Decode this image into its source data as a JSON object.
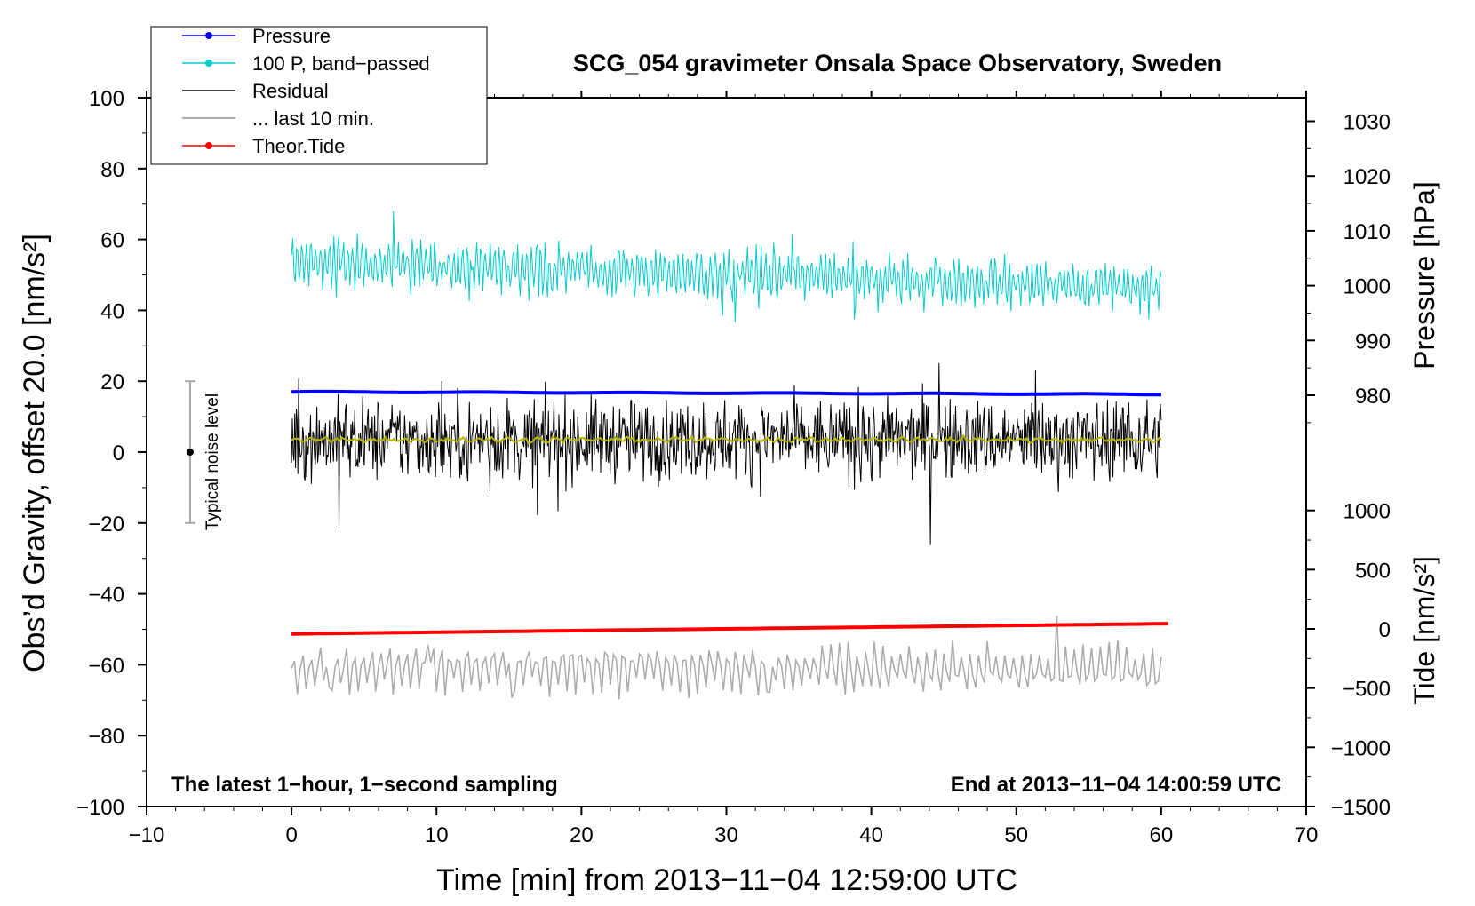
{
  "chart_data": {
    "type": "line",
    "title": "SCG_054 gravimeter Onsala Space Observatory, Sweden",
    "xlabel": "Time [min] from 2013−11−04 12:59:00 UTC",
    "ylabel_left": "Obs’d Gravity, offset 20.0 [nm/s²]",
    "ylabel_right_top": "Pressure [hPa]",
    "ylabel_right_bottom": "Tide [nm/s²]",
    "xlim": [
      -10,
      70
    ],
    "ylim": [
      -100,
      100
    ],
    "pressure_axis_ticks": [
      980,
      990,
      1000,
      1010,
      1020,
      1030
    ],
    "tide_axis_ticks": [
      -1500,
      -1000,
      -500,
      0,
      500,
      1000
    ],
    "xticks": [
      -10,
      0,
      10,
      20,
      30,
      40,
      50,
      60,
      70
    ],
    "yticks": [
      -100,
      -80,
      -60,
      -40,
      -20,
      0,
      20,
      40,
      60,
      80,
      100
    ],
    "annotation_left": "The latest 1−hour, 1−second sampling",
    "annotation_right": "End at 2013−11−04 14:00:59 UTC",
    "noise_label": "Typical noise level",
    "noise_bar": {
      "x": -7,
      "center": 0,
      "half_range": 20
    },
    "legend_position": "top-left",
    "legend": [
      {
        "label": "Pressure",
        "color": "#0000ff",
        "marker": true
      },
      {
        "label": "100 P, band−passed",
        "color": "#00cccc",
        "marker": true
      },
      {
        "label": "Residual",
        "color": "#000000",
        "marker": false
      },
      {
        "label": "... last 10 min.",
        "color": "#aaaaaa",
        "marker": false
      },
      {
        "label": "Theor.Tide",
        "color": "#ff0000",
        "marker": true
      }
    ],
    "series": [
      {
        "name": "Pressure",
        "color": "#0000ff",
        "x_range": [
          0,
          60
        ],
        "y_start": 17,
        "y_end": 16.3
      },
      {
        "name": "100 P, band−passed",
        "color": "#00cccc",
        "x_range": [
          0,
          60
        ],
        "center_start": 54,
        "center_end": 46,
        "amplitude": 5
      },
      {
        "name": "Residual",
        "color": "#000000",
        "x_range": [
          0,
          60
        ],
        "center": 3.5,
        "amplitude": 7
      },
      {
        "name": "Residual smoothed",
        "color": "#b5b500",
        "x_range": [
          0,
          60
        ],
        "center": 3.5
      },
      {
        "name": "... last 10 min.",
        "color": "#aaaaaa",
        "x_range": [
          0,
          60
        ],
        "center": -61,
        "amplitude": 8
      },
      {
        "name": "Theor.Tide",
        "color": "#ff0000",
        "x_range": [
          0,
          60.5
        ],
        "y_start": -51.3,
        "y_end": -48.4
      }
    ]
  }
}
